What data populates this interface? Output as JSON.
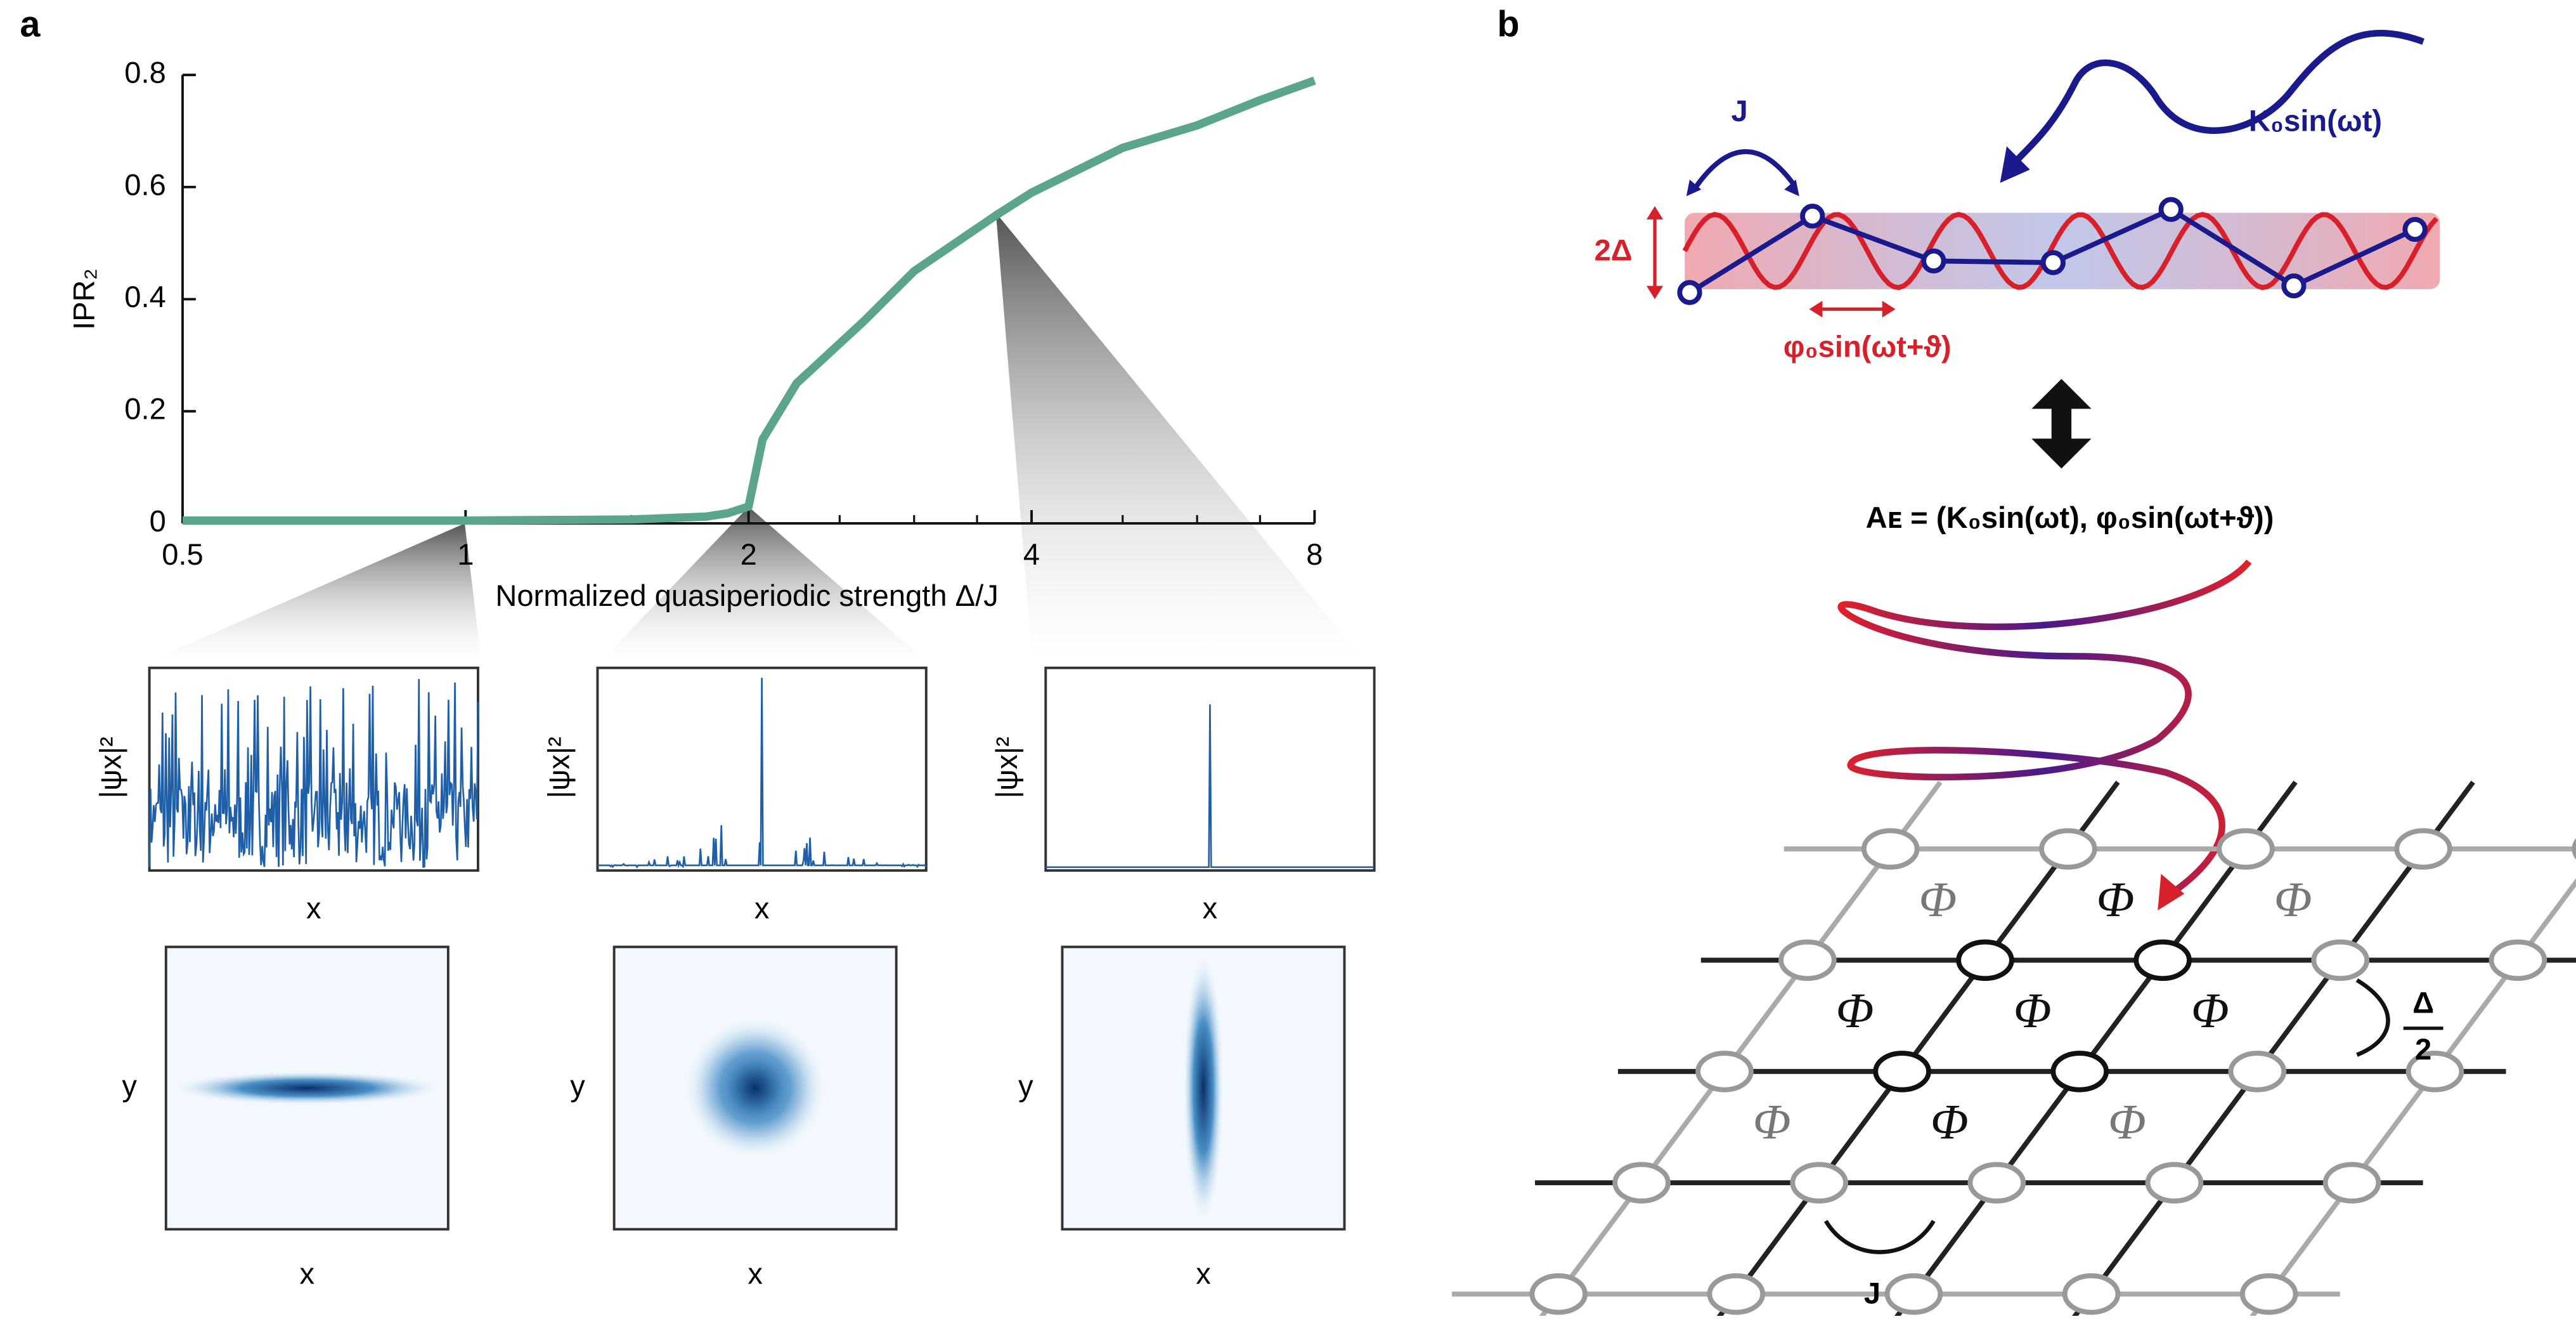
{
  "panels": {
    "a": "a",
    "b": "b"
  },
  "chart_data": {
    "type": "line",
    "xlabel": "Normalized quasiperiodic strength Δ/J",
    "ylabel": "IPR₂",
    "x": [
      0.5,
      1,
      1.5,
      1.8,
      1.9,
      2,
      2.07,
      2.25,
      2.65,
      3,
      3.67,
      4,
      5,
      6,
      7,
      8
    ],
    "values": [
      0.005,
      0.005,
      0.007,
      0.012,
      0.018,
      0.03,
      0.15,
      0.25,
      0.36,
      0.45,
      0.55,
      0.59,
      0.67,
      0.71,
      0.755,
      0.79
    ],
    "color": "#5ba68a",
    "log_x": true,
    "xlim": [
      0.5,
      8
    ],
    "xticks": [
      0.5,
      1,
      2,
      4,
      8
    ],
    "x_minor_ticks": [
      1.5,
      2.5,
      3,
      3.5,
      5,
      6,
      7
    ],
    "ylim": [
      0,
      0.8
    ],
    "yticks": [
      0,
      0.2,
      0.4,
      0.6,
      0.8
    ]
  },
  "insets": {
    "ylabel": "|ψx|²",
    "xlabel": "x",
    "map_ylabel": "y"
  },
  "diagram": {
    "hopping": "J",
    "drive": "K₀sin(ωt)",
    "amplitude": "2Δ",
    "phase_drive": "φ₀sin(ωt+ϑ)",
    "field": "Aᴇ = (K₀sin(ωt), φ₀sin(ωt+ϑ))",
    "flux": [
      "Φ",
      "Φ",
      "Φ",
      "Φ",
      "Φ",
      "Φ",
      "Φ",
      "Φ",
      "Φ"
    ],
    "diag_num": "Δ",
    "diag_den": "2",
    "bottom_hopping": "J"
  }
}
